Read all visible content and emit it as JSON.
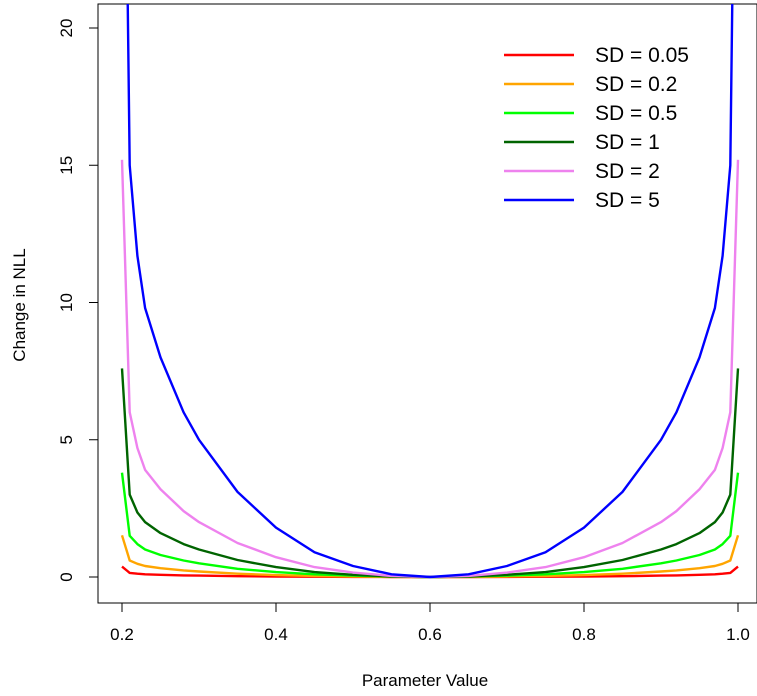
{
  "chart_data": {
    "type": "line",
    "title": "",
    "xlabel": "Parameter Value",
    "ylabel": "Change in NLL",
    "xlim": [
      0.2,
      1.0
    ],
    "ylim": [
      0,
      20
    ],
    "x_ticks": [
      "0.2",
      "0.4",
      "0.6",
      "0.8",
      "1.0"
    ],
    "y_ticks": [
      "0",
      "5",
      "10",
      "15",
      "20"
    ],
    "legend_position": "top-right",
    "grid": false,
    "x": [
      0.2,
      0.21,
      0.22,
      0.23,
      0.25,
      0.28,
      0.3,
      0.35,
      0.4,
      0.45,
      0.5,
      0.55,
      0.6,
      0.65,
      0.7,
      0.75,
      0.8,
      0.85,
      0.9,
      0.92,
      0.95,
      0.97,
      0.98,
      0.99,
      1.0
    ],
    "series": [
      {
        "name": "SD = 0.05",
        "color": "#ff0000",
        "values": [
          0.38,
          0.15,
          0.12,
          0.1,
          0.08,
          0.06,
          0.05,
          0.03,
          0.02,
          0.01,
          0.005,
          0.001,
          0,
          0.001,
          0.005,
          0.01,
          0.02,
          0.03,
          0.05,
          0.06,
          0.08,
          0.1,
          0.12,
          0.15,
          0.38
        ]
      },
      {
        "name": "SD = 0.2",
        "color": "#ffa500",
        "values": [
          1.52,
          0.6,
          0.48,
          0.4,
          0.32,
          0.24,
          0.2,
          0.12,
          0.07,
          0.04,
          0.02,
          0.005,
          0,
          0.005,
          0.02,
          0.04,
          0.07,
          0.12,
          0.2,
          0.24,
          0.32,
          0.4,
          0.48,
          0.6,
          1.52
        ]
      },
      {
        "name": "SD = 0.5",
        "color": "#00ff00",
        "values": [
          3.8,
          1.5,
          1.2,
          1.0,
          0.8,
          0.6,
          0.5,
          0.3,
          0.18,
          0.1,
          0.05,
          0.013,
          0,
          0.013,
          0.05,
          0.1,
          0.18,
          0.3,
          0.5,
          0.6,
          0.8,
          1.0,
          1.2,
          1.5,
          3.8
        ]
      },
      {
        "name": "SD = 1",
        "color": "#006400",
        "values": [
          7.6,
          3.0,
          2.35,
          2.0,
          1.6,
          1.2,
          1.0,
          0.62,
          0.36,
          0.18,
          0.08,
          0.02,
          0,
          0.02,
          0.08,
          0.18,
          0.36,
          0.62,
          1.0,
          1.2,
          1.6,
          2.0,
          2.35,
          3.0,
          7.6
        ]
      },
      {
        "name": "SD = 2",
        "color": "#ee82ee",
        "values": [
          15.2,
          6.0,
          4.7,
          3.9,
          3.2,
          2.4,
          2.0,
          1.24,
          0.72,
          0.36,
          0.16,
          0.04,
          0,
          0.04,
          0.16,
          0.36,
          0.72,
          1.24,
          2.0,
          2.4,
          3.2,
          3.9,
          4.7,
          6.0,
          15.2
        ]
      },
      {
        "name": "SD = 5",
        "color": "#0000ff",
        "values": [
          38.0,
          15.0,
          11.7,
          9.8,
          8.0,
          6.0,
          5.0,
          3.1,
          1.8,
          0.9,
          0.4,
          0.1,
          0,
          0.1,
          0.4,
          0.9,
          1.8,
          3.1,
          5.0,
          6.0,
          8.0,
          9.8,
          11.7,
          15.0,
          38.0
        ]
      }
    ]
  }
}
